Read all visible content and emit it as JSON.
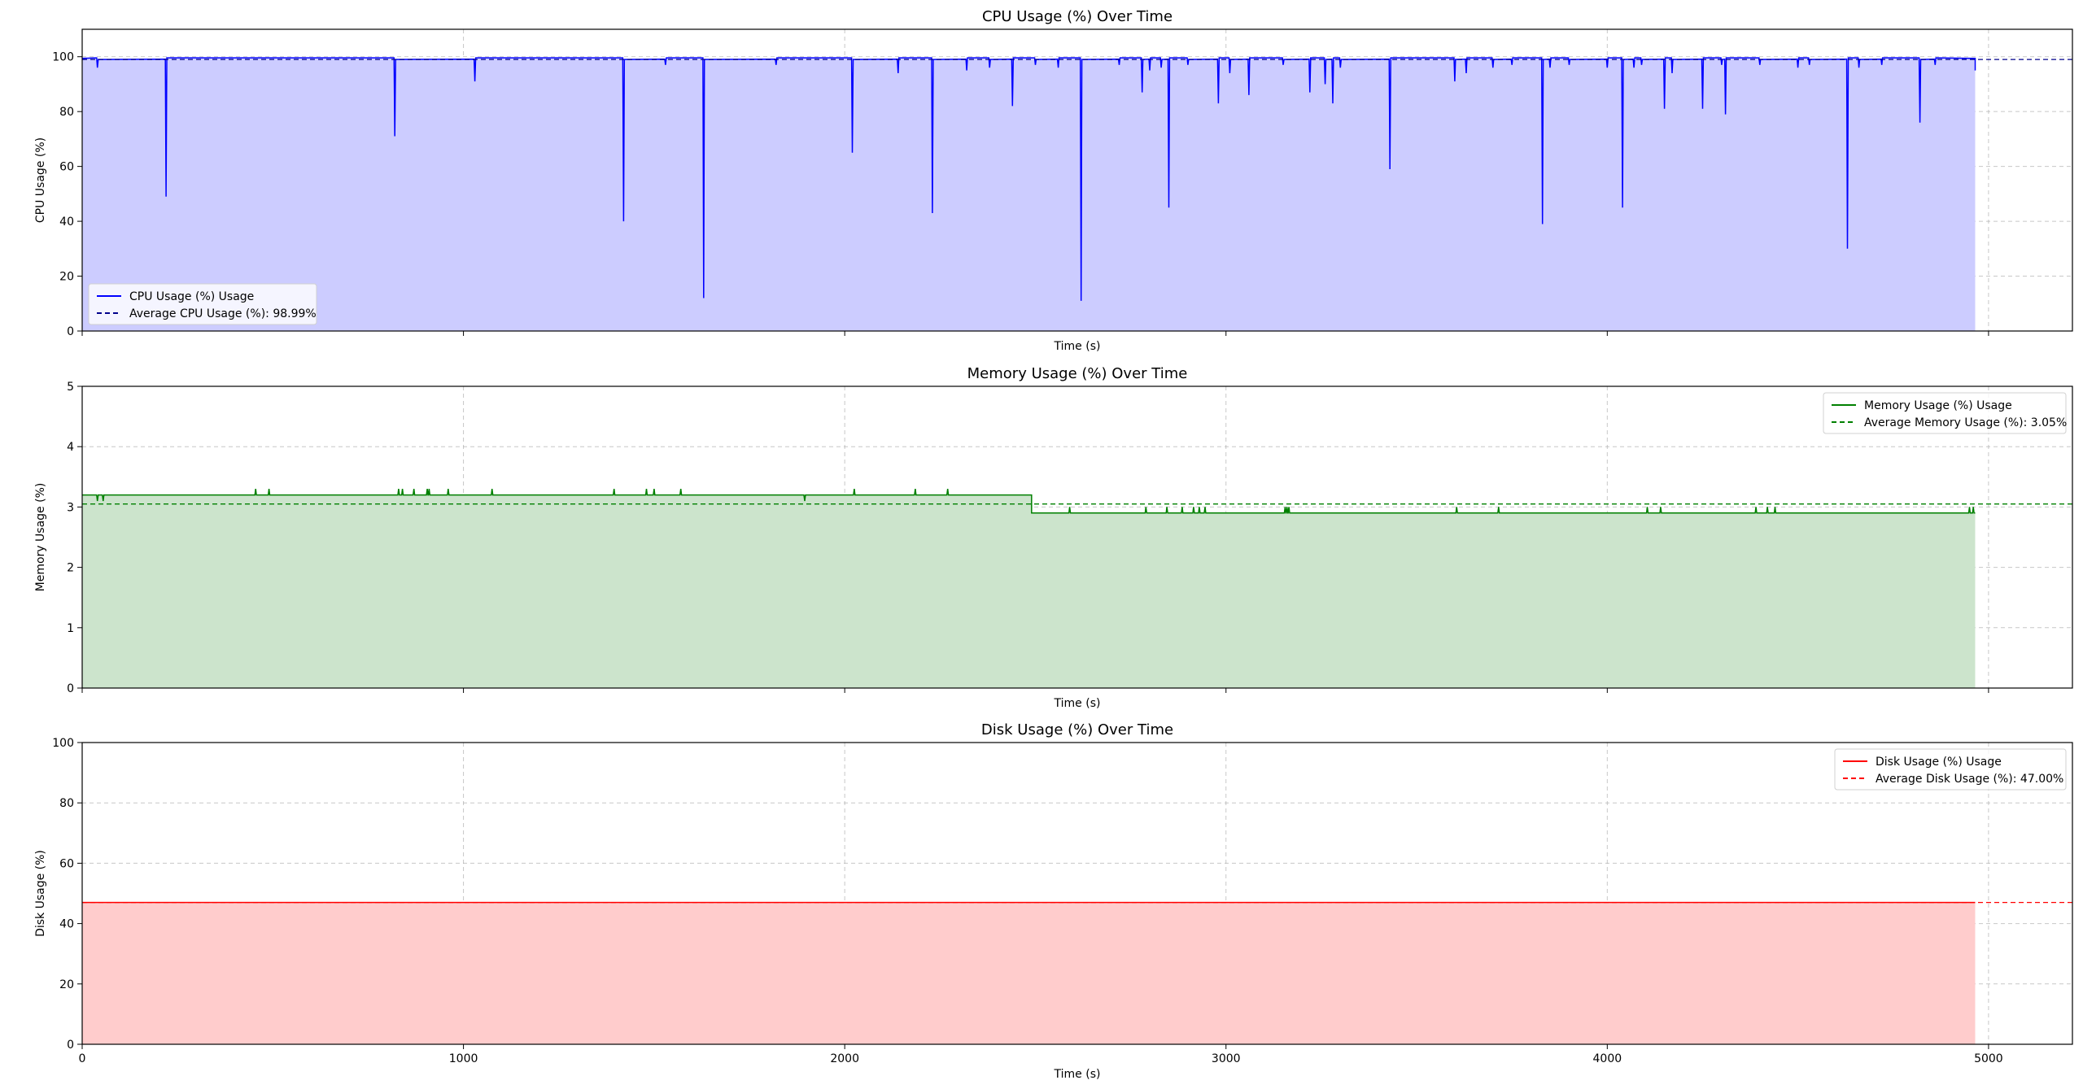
{
  "chart_data": [
    {
      "type": "area",
      "title": "CPU Usage (%) Over Time",
      "xlabel": "Time (s)",
      "ylabel": "CPU Usage (%)",
      "xlim": [
        0,
        5220
      ],
      "ylim": [
        0,
        110
      ],
      "xticks": [
        0,
        1000,
        2000,
        3000,
        4000,
        5000
      ],
      "yticks": [
        0,
        20,
        40,
        60,
        80,
        100
      ],
      "show_xticklabels": false,
      "grid": true,
      "legend_loc": "lower-left",
      "color": "#0000ff",
      "fill_color": "#ccccff",
      "avg_color": "#00008b",
      "series_label": "CPU Usage (%) Usage",
      "avg_label": "Average CPU Usage (%): 98.99%",
      "average": 98.99,
      "x_end": 4965,
      "baseline": 99.4,
      "events": [
        [
          40,
          96
        ],
        [
          220,
          49
        ],
        [
          820,
          71
        ],
        [
          1030,
          91
        ],
        [
          1420,
          40
        ],
        [
          1530,
          97
        ],
        [
          1630,
          12
        ],
        [
          1820,
          97
        ],
        [
          2020,
          65
        ],
        [
          2140,
          94
        ],
        [
          2230,
          43
        ],
        [
          2320,
          95
        ],
        [
          2380,
          96
        ],
        [
          2440,
          82
        ],
        [
          2500,
          97
        ],
        [
          2560,
          96
        ],
        [
          2620,
          11
        ],
        [
          2720,
          97
        ],
        [
          2780,
          87
        ],
        [
          2800,
          95
        ],
        [
          2830,
          96
        ],
        [
          2850,
          45
        ],
        [
          2900,
          97
        ],
        [
          2980,
          83
        ],
        [
          3010,
          94
        ],
        [
          3060,
          86
        ],
        [
          3150,
          97
        ],
        [
          3220,
          87
        ],
        [
          3260,
          90
        ],
        [
          3280,
          83
        ],
        [
          3300,
          96
        ],
        [
          3430,
          59
        ],
        [
          3600,
          91
        ],
        [
          3630,
          94
        ],
        [
          3700,
          96
        ],
        [
          3750,
          97
        ],
        [
          3830,
          39
        ],
        [
          3850,
          96
        ],
        [
          3900,
          97
        ],
        [
          4000,
          96
        ],
        [
          4040,
          45
        ],
        [
          4070,
          96
        ],
        [
          4090,
          97
        ],
        [
          4150,
          81
        ],
        [
          4170,
          94
        ],
        [
          4250,
          81
        ],
        [
          4300,
          97
        ],
        [
          4310,
          79
        ],
        [
          4400,
          97
        ],
        [
          4500,
          96
        ],
        [
          4530,
          97
        ],
        [
          4630,
          30
        ],
        [
          4660,
          96
        ],
        [
          4720,
          97
        ],
        [
          4820,
          76
        ],
        [
          4860,
          97
        ]
      ]
    },
    {
      "type": "area",
      "title": "Memory Usage (%) Over Time",
      "xlabel": "Time (s)",
      "ylabel": "Memory Usage (%)",
      "xlim": [
        0,
        5220
      ],
      "ylim": [
        0,
        5
      ],
      "xticks": [
        0,
        1000,
        2000,
        3000,
        4000,
        5000
      ],
      "yticks": [
        0,
        1,
        2,
        3,
        4,
        5
      ],
      "show_xticklabels": false,
      "grid": true,
      "legend_loc": "upper-right",
      "color": "#008000",
      "fill_color": "#cce4cc",
      "avg_color": "#008000",
      "series_label": "Memory Usage (%) Usage",
      "avg_label": "Average Memory Usage (%): 3.05%",
      "average": 3.05,
      "x_end": 4965,
      "steps": [
        [
          0,
          3.2
        ],
        [
          2490,
          2.9
        ]
      ],
      "spikes": [
        [
          40,
          3.1
        ],
        [
          55,
          3.1
        ],
        [
          455,
          3.3
        ],
        [
          490,
          3.3
        ],
        [
          830,
          3.3
        ],
        [
          840,
          3.3
        ],
        [
          870,
          3.3
        ],
        [
          905,
          3.3
        ],
        [
          910,
          3.3
        ],
        [
          960,
          3.3
        ],
        [
          1075,
          3.3
        ],
        [
          1395,
          3.3
        ],
        [
          1480,
          3.3
        ],
        [
          1500,
          3.3
        ],
        [
          1570,
          3.3
        ],
        [
          1895,
          3.1
        ],
        [
          2025,
          3.3
        ],
        [
          2185,
          3.3
        ],
        [
          2270,
          3.3
        ],
        [
          2590,
          3.0
        ],
        [
          2790,
          3.0
        ],
        [
          2845,
          3.0
        ],
        [
          2885,
          3.0
        ],
        [
          2915,
          3.0
        ],
        [
          2930,
          3.0
        ],
        [
          2945,
          3.0
        ],
        [
          3155,
          3.0
        ],
        [
          3160,
          3.0
        ],
        [
          3165,
          3.0
        ],
        [
          3605,
          3.0
        ],
        [
          3715,
          3.0
        ],
        [
          4105,
          3.0
        ],
        [
          4140,
          3.0
        ],
        [
          4390,
          3.0
        ],
        [
          4420,
          3.0
        ],
        [
          4440,
          3.0
        ],
        [
          4950,
          3.0
        ],
        [
          4960,
          3.0
        ]
      ]
    },
    {
      "type": "area",
      "title": "Disk Usage (%) Over Time",
      "xlabel": "Time (s)",
      "ylabel": "Disk Usage (%)",
      "xlim": [
        0,
        5220
      ],
      "ylim": [
        0,
        100
      ],
      "xticks": [
        0,
        1000,
        2000,
        3000,
        4000,
        5000
      ],
      "yticks": [
        0,
        20,
        40,
        60,
        80,
        100
      ],
      "show_xticklabels": true,
      "grid": true,
      "legend_loc": "upper-right",
      "color": "#ff0000",
      "fill_color": "#ffcccc",
      "avg_color": "#ff0000",
      "series_label": "Disk Usage (%) Usage",
      "avg_label": "Average Disk Usage (%): 47.00%",
      "average": 47.0,
      "x_end": 4965,
      "steps": [
        [
          0,
          47.0
        ]
      ]
    }
  ]
}
